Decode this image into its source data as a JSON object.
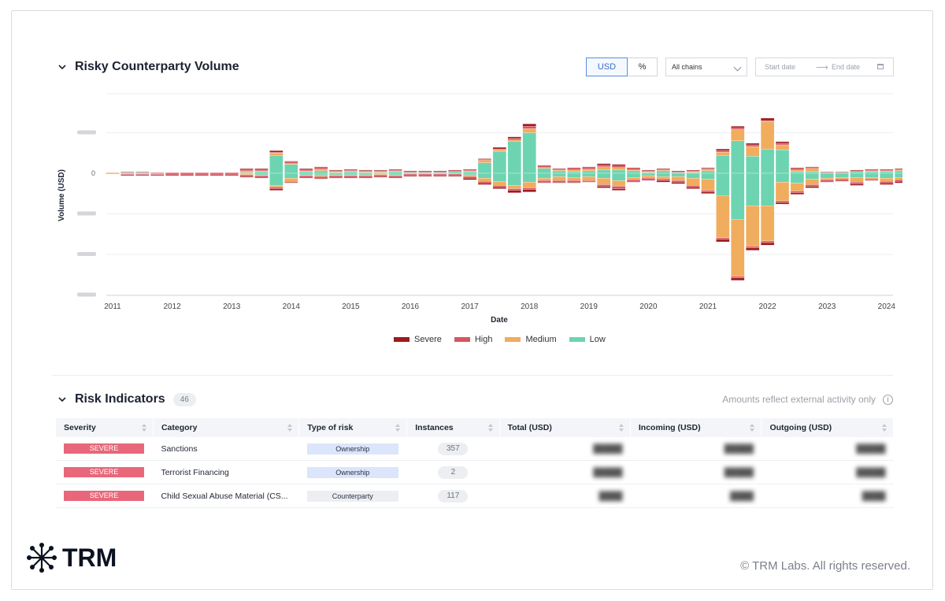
{
  "panel": {
    "title": "Risky Counterparty Volume",
    "toggle": {
      "usd": "USD",
      "pct": "%"
    },
    "chain_select": "All chains",
    "date": {
      "start": "Start date",
      "end": "End date"
    }
  },
  "chart_data": {
    "type": "bar",
    "stacked": true,
    "diverging": true,
    "xlabel": "Date",
    "ylabel": "Volume (USD)",
    "x_ticks": [
      "2011",
      "2012",
      "2013",
      "2014",
      "2015",
      "2016",
      "2017",
      "2018",
      "2019",
      "2020",
      "2021",
      "2022",
      "2023",
      "2024"
    ],
    "y_ticks_relative": [
      1,
      0,
      -1,
      -2,
      -3
    ],
    "ylim": [
      -3,
      2
    ],
    "grid": true,
    "legend": "bottom",
    "colors": {
      "Severe": "#9e1a1d",
      "High": "#d95561",
      "Medium": "#f0ad5e",
      "Low": "#6dd4b1"
    },
    "series_order": [
      "Low",
      "Medium",
      "High",
      "Severe"
    ],
    "bars": [
      {
        "year": 2011.0,
        "pos": [
          0.0,
          0.02,
          0.0,
          0.0
        ],
        "neg": [
          0.0,
          0.02,
          0.0,
          0.0
        ]
      },
      {
        "year": 2011.25,
        "pos": [
          0.02,
          0.0,
          0.02,
          0.0
        ],
        "neg": [
          0.02,
          0.0,
          0.02,
          0.02
        ]
      },
      {
        "year": 2011.5,
        "pos": [
          0.02,
          0.0,
          0.02,
          0.0
        ],
        "neg": [
          0.02,
          0.0,
          0.02,
          0.02
        ]
      },
      {
        "year": 2011.75,
        "pos": [
          0.0,
          0.0,
          0.02,
          0.0
        ],
        "neg": [
          0.02,
          0.0,
          0.02,
          0.02
        ]
      },
      {
        "year": 2012.0,
        "pos": [
          0.0,
          0.0,
          0.02,
          0.0
        ],
        "neg": [
          0.0,
          0.0,
          0.04,
          0.02
        ]
      },
      {
        "year": 2012.25,
        "pos": [
          0.0,
          0.0,
          0.02,
          0.0
        ],
        "neg": [
          0.0,
          0.0,
          0.04,
          0.02
        ]
      },
      {
        "year": 2012.5,
        "pos": [
          0.0,
          0.0,
          0.02,
          0.0
        ],
        "neg": [
          0.0,
          0.0,
          0.04,
          0.02
        ]
      },
      {
        "year": 2012.75,
        "pos": [
          0.0,
          0.0,
          0.02,
          0.0
        ],
        "neg": [
          0.0,
          0.0,
          0.04,
          0.02
        ]
      },
      {
        "year": 2013.0,
        "pos": [
          0.0,
          0.0,
          0.02,
          0.0
        ],
        "neg": [
          0.0,
          0.0,
          0.04,
          0.02
        ]
      },
      {
        "year": 2013.25,
        "pos": [
          0.02,
          0.04,
          0.04,
          0.02
        ],
        "neg": [
          0.02,
          0.02,
          0.04,
          0.02
        ]
      },
      {
        "year": 2013.5,
        "pos": [
          0.04,
          0.02,
          0.04,
          0.02
        ],
        "neg": [
          0.04,
          0.02,
          0.04,
          0.02
        ]
      },
      {
        "year": 2013.75,
        "pos": [
          0.44,
          0.06,
          0.02,
          0.04
        ],
        "neg": [
          0.3,
          0.04,
          0.04,
          0.04
        ]
      },
      {
        "year": 2014.0,
        "pos": [
          0.22,
          0.02,
          0.04,
          0.02
        ],
        "neg": [
          0.12,
          0.08,
          0.02,
          0.02
        ]
      },
      {
        "year": 2014.25,
        "pos": [
          0.04,
          0.02,
          0.04,
          0.02
        ],
        "neg": [
          0.04,
          0.02,
          0.04,
          0.02
        ]
      },
      {
        "year": 2014.5,
        "pos": [
          0.06,
          0.04,
          0.04,
          0.02
        ],
        "neg": [
          0.04,
          0.04,
          0.04,
          0.02
        ]
      },
      {
        "year": 2014.75,
        "pos": [
          0.02,
          0.02,
          0.02,
          0.02
        ],
        "neg": [
          0.04,
          0.02,
          0.04,
          0.02
        ]
      },
      {
        "year": 2015.0,
        "pos": [
          0.04,
          0.02,
          0.02,
          0.02
        ],
        "neg": [
          0.04,
          0.02,
          0.04,
          0.02
        ]
      },
      {
        "year": 2015.25,
        "pos": [
          0.02,
          0.02,
          0.02,
          0.02
        ],
        "neg": [
          0.04,
          0.02,
          0.04,
          0.02
        ]
      },
      {
        "year": 2015.5,
        "pos": [
          0.02,
          0.02,
          0.02,
          0.02
        ],
        "neg": [
          0.02,
          0.02,
          0.04,
          0.02
        ]
      },
      {
        "year": 2015.75,
        "pos": [
          0.04,
          0.02,
          0.02,
          0.02
        ],
        "neg": [
          0.04,
          0.02,
          0.04,
          0.02
        ]
      },
      {
        "year": 2016.0,
        "pos": [
          0.02,
          0.0,
          0.02,
          0.02
        ],
        "neg": [
          0.02,
          0.0,
          0.04,
          0.02
        ]
      },
      {
        "year": 2016.25,
        "pos": [
          0.02,
          0.0,
          0.02,
          0.02
        ],
        "neg": [
          0.02,
          0.0,
          0.04,
          0.02
        ]
      },
      {
        "year": 2016.5,
        "pos": [
          0.02,
          0.0,
          0.02,
          0.02
        ],
        "neg": [
          0.02,
          0.0,
          0.04,
          0.02
        ]
      },
      {
        "year": 2016.75,
        "pos": [
          0.04,
          0.0,
          0.02,
          0.02
        ],
        "neg": [
          0.02,
          0.0,
          0.04,
          0.02
        ]
      },
      {
        "year": 2017.0,
        "pos": [
          0.04,
          0.02,
          0.02,
          0.02
        ],
        "neg": [
          0.04,
          0.04,
          0.04,
          0.04
        ]
      },
      {
        "year": 2017.25,
        "pos": [
          0.26,
          0.06,
          0.02,
          0.02
        ],
        "neg": [
          0.12,
          0.08,
          0.04,
          0.04
        ]
      },
      {
        "year": 2017.5,
        "pos": [
          0.54,
          0.04,
          0.02,
          0.04
        ],
        "neg": [
          0.2,
          0.1,
          0.04,
          0.04
        ]
      },
      {
        "year": 2017.75,
        "pos": [
          0.78,
          0.04,
          0.04,
          0.04
        ],
        "neg": [
          0.3,
          0.08,
          0.04,
          0.06
        ]
      },
      {
        "year": 2018.0,
        "pos": [
          1.0,
          0.1,
          0.06,
          0.06
        ],
        "neg": [
          0.22,
          0.14,
          0.04,
          0.06
        ]
      },
      {
        "year": 2018.25,
        "pos": [
          0.12,
          0.02,
          0.04,
          0.02
        ],
        "neg": [
          0.12,
          0.06,
          0.04,
          0.02
        ]
      },
      {
        "year": 2018.5,
        "pos": [
          0.06,
          0.02,
          0.02,
          0.02
        ],
        "neg": [
          0.08,
          0.1,
          0.04,
          0.02
        ]
      },
      {
        "year": 2018.75,
        "pos": [
          0.04,
          0.04,
          0.04,
          0.02
        ],
        "neg": [
          0.1,
          0.08,
          0.04,
          0.02
        ]
      },
      {
        "year": 2019.0,
        "pos": [
          0.06,
          0.04,
          0.04,
          0.02
        ],
        "neg": [
          0.08,
          0.1,
          0.02,
          0.02
        ]
      },
      {
        "year": 2019.25,
        "pos": [
          0.08,
          0.08,
          0.04,
          0.04
        ],
        "neg": [
          0.12,
          0.16,
          0.04,
          0.04
        ]
      },
      {
        "year": 2019.5,
        "pos": [
          0.08,
          0.06,
          0.04,
          0.04
        ],
        "neg": [
          0.18,
          0.14,
          0.06,
          0.04
        ]
      },
      {
        "year": 2019.75,
        "pos": [
          0.06,
          0.02,
          0.04,
          0.02
        ],
        "neg": [
          0.1,
          0.06,
          0.04,
          0.02
        ]
      },
      {
        "year": 2020.0,
        "pos": [
          0.02,
          0.02,
          0.02,
          0.02
        ],
        "neg": [
          0.06,
          0.06,
          0.04,
          0.02
        ]
      },
      {
        "year": 2020.25,
        "pos": [
          0.06,
          0.02,
          0.02,
          0.02
        ],
        "neg": [
          0.08,
          0.06,
          0.04,
          0.04
        ]
      },
      {
        "year": 2020.5,
        "pos": [
          0.02,
          0.0,
          0.02,
          0.02
        ],
        "neg": [
          0.08,
          0.1,
          0.04,
          0.04
        ]
      },
      {
        "year": 2020.75,
        "pos": [
          0.02,
          0.02,
          0.02,
          0.02
        ],
        "neg": [
          0.12,
          0.18,
          0.04,
          0.04
        ]
      },
      {
        "year": 2021.0,
        "pos": [
          0.06,
          0.04,
          0.02,
          0.02
        ],
        "neg": [
          0.14,
          0.28,
          0.04,
          0.04
        ]
      },
      {
        "year": 2021.25,
        "pos": [
          0.44,
          0.08,
          0.04,
          0.04
        ],
        "neg": [
          0.56,
          1.03,
          0.04,
          0.06
        ]
      },
      {
        "year": 2021.5,
        "pos": [
          0.8,
          0.28,
          0.04,
          0.04
        ],
        "neg": [
          1.14,
          1.4,
          0.04,
          0.06
        ]
      },
      {
        "year": 2021.75,
        "pos": [
          0.42,
          0.24,
          0.04,
          0.04
        ],
        "neg": [
          0.8,
          1.0,
          0.04,
          0.06
        ]
      },
      {
        "year": 2022.0,
        "pos": [
          0.6,
          0.68,
          0.02,
          0.06
        ],
        "neg": [
          0.8,
          0.87,
          0.04,
          0.06
        ]
      },
      {
        "year": 2022.25,
        "pos": [
          0.58,
          0.12,
          0.04,
          0.04
        ],
        "neg": [
          0.22,
          0.46,
          0.04,
          0.04
        ]
      },
      {
        "year": 2022.5,
        "pos": [
          0.04,
          0.04,
          0.04,
          0.02
        ],
        "neg": [
          0.24,
          0.2,
          0.04,
          0.04
        ]
      },
      {
        "year": 2022.75,
        "pos": [
          0.04,
          0.08,
          0.02,
          0.02
        ],
        "neg": [
          0.14,
          0.14,
          0.04,
          0.04
        ]
      },
      {
        "year": 2023.0,
        "pos": [
          0.02,
          0.0,
          0.02,
          0.0
        ],
        "neg": [
          0.12,
          0.04,
          0.04,
          0.02
        ]
      },
      {
        "year": 2023.25,
        "pos": [
          0.02,
          0.0,
          0.02,
          0.0
        ],
        "neg": [
          0.1,
          0.04,
          0.04,
          0.02
        ]
      },
      {
        "year": 2023.5,
        "pos": [
          0.04,
          0.0,
          0.02,
          0.02
        ],
        "neg": [
          0.1,
          0.12,
          0.04,
          0.04
        ]
      },
      {
        "year": 2023.75,
        "pos": [
          0.04,
          0.02,
          0.02,
          0.02
        ],
        "neg": [
          0.1,
          0.04,
          0.02,
          0.02
        ]
      },
      {
        "year": 2024.0,
        "pos": [
          0.04,
          0.02,
          0.02,
          0.02
        ],
        "neg": [
          0.12,
          0.08,
          0.04,
          0.04
        ]
      },
      {
        "year": 2024.25,
        "pos": [
          0.06,
          0.02,
          0.02,
          0.02
        ],
        "neg": [
          0.1,
          0.06,
          0.04,
          0.04
        ]
      },
      {
        "year": 2024.5,
        "pos": [
          0.06,
          0.02,
          0.02,
          0.02
        ],
        "neg": [
          0.08,
          0.06,
          0.02,
          0.04
        ]
      },
      {
        "year": 2024.75,
        "pos": [
          0.04,
          0.02,
          0.02,
          0.02
        ],
        "neg": [
          0.08,
          0.04,
          0.02,
          0.04
        ]
      }
    ]
  },
  "legend": [
    {
      "name": "Severe",
      "color": "#9e1a1d"
    },
    {
      "name": "High",
      "color": "#d95561"
    },
    {
      "name": "Medium",
      "color": "#f0ad5e"
    },
    {
      "name": "Low",
      "color": "#6dd4b1"
    }
  ],
  "indicators": {
    "title": "Risk Indicators",
    "count": "46",
    "note": "Amounts reflect external activity only",
    "columns": [
      "Severity",
      "Category",
      "Type of risk",
      "Instances",
      "Total (USD)",
      "Incoming (USD)",
      "Outgoing (USD)"
    ],
    "rows": [
      {
        "severity": "SEVERE",
        "category": "Sanctions",
        "type": "Ownership",
        "type_kind": "own",
        "instances": "357"
      },
      {
        "severity": "SEVERE",
        "category": "Terrorist Financing",
        "type": "Ownership",
        "type_kind": "own",
        "instances": "2"
      },
      {
        "severity": "SEVERE",
        "category": "Child Sexual Abuse Material (CS...",
        "type": "Counterparty",
        "type_kind": "cp",
        "instances": "117"
      }
    ]
  },
  "footer": {
    "logo": "TRM",
    "copyright": "© TRM Labs. All rights reserved."
  }
}
